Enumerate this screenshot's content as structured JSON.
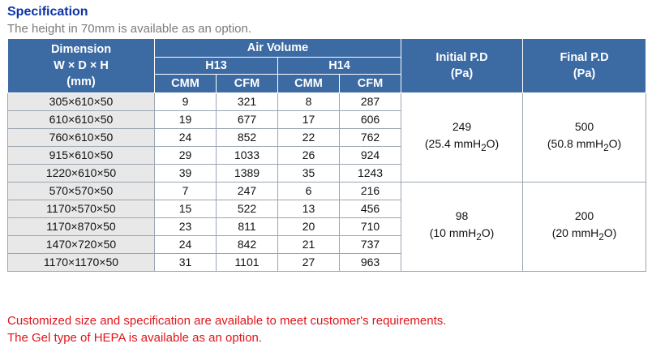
{
  "title": "Specification",
  "subtitle": "The height in 70mm is available as an option.",
  "table": {
    "dimension_header": {
      "line1": "Dimension",
      "line2": "W × D × H",
      "line3": "(mm)"
    },
    "air_volume_header": "Air Volume",
    "h13": "H13",
    "h14": "H14",
    "cmm": "CMM",
    "cfm": "CFM",
    "initial_pd": {
      "line1": "Initial P.D",
      "line2": "(Pa)"
    },
    "final_pd": {
      "line1": "Final P.D",
      "line2": "(Pa)"
    },
    "groups": [
      {
        "initial_pd": {
          "value": "249",
          "sub_pre": "(25.4 mmH",
          "sub_sub": "2",
          "sub_post": "O)"
        },
        "final_pd": {
          "value": "500",
          "sub_pre": "(50.8 mmH",
          "sub_sub": "2",
          "sub_post": "O)"
        },
        "rows": [
          {
            "dim": "305×610×50",
            "h13_cmm": "9",
            "h13_cfm": "321",
            "h14_cmm": "8",
            "h14_cfm": "287"
          },
          {
            "dim": "610×610×50",
            "h13_cmm": "19",
            "h13_cfm": "677",
            "h14_cmm": "17",
            "h14_cfm": "606"
          },
          {
            "dim": "760×610×50",
            "h13_cmm": "24",
            "h13_cfm": "852",
            "h14_cmm": "22",
            "h14_cfm": "762"
          },
          {
            "dim": "915×610×50",
            "h13_cmm": "29",
            "h13_cfm": "1033",
            "h14_cmm": "26",
            "h14_cfm": "924"
          },
          {
            "dim": "1220×610×50",
            "h13_cmm": "39",
            "h13_cfm": "1389",
            "h14_cmm": "35",
            "h14_cfm": "1243"
          }
        ]
      },
      {
        "initial_pd": {
          "value": "98",
          "sub_pre": "(10 mmH",
          "sub_sub": "2",
          "sub_post": "O)"
        },
        "final_pd": {
          "value": "200",
          "sub_pre": "(20 mmH",
          "sub_sub": "2",
          "sub_post": "O)"
        },
        "rows": [
          {
            "dim": "570×570×50",
            "h13_cmm": "7",
            "h13_cfm": "247",
            "h14_cmm": "6",
            "h14_cfm": "216"
          },
          {
            "dim": "1170×570×50",
            "h13_cmm": "15",
            "h13_cfm": "522",
            "h14_cmm": "13",
            "h14_cfm": "456"
          },
          {
            "dim": "1170×870×50",
            "h13_cmm": "23",
            "h13_cfm": "811",
            "h14_cmm": "20",
            "h14_cfm": "710"
          },
          {
            "dim": "1470×720×50",
            "h13_cmm": "24",
            "h13_cfm": "842",
            "h14_cmm": "21",
            "h14_cfm": "737"
          },
          {
            "dim": "1170×1170×50",
            "h13_cmm": "31",
            "h13_cfm": "1101",
            "h14_cmm": "27",
            "h14_cfm": "963"
          }
        ]
      }
    ]
  },
  "notes": [
    "Customized size and specification are available to meet customer's requirements.",
    "The Gel type of HEPA is available as an option."
  ],
  "colors": {
    "title": "#0b33a6",
    "header_bg": "#3c6aa3",
    "dimension_cell_bg": "#e8e8e8",
    "note_text": "#e1141a",
    "subtitle": "#7b7b7b"
  }
}
